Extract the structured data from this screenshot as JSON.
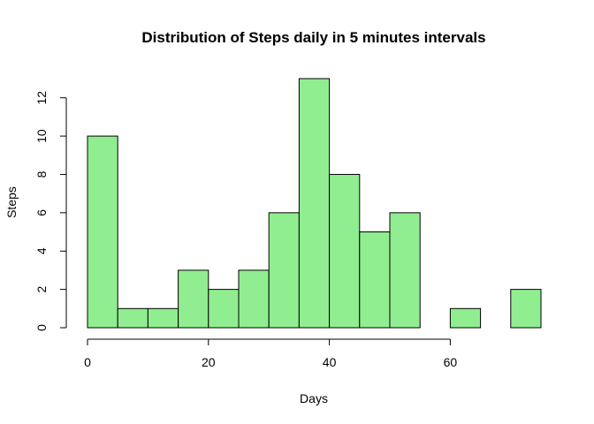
{
  "chart_data": {
    "type": "bar",
    "title": "Distribution of Steps daily in 5 minutes intervals",
    "xlabel": "Days",
    "ylabel": "Steps",
    "bin_width": 5,
    "bins": [
      {
        "start": 0,
        "end": 5,
        "value": 10
      },
      {
        "start": 5,
        "end": 10,
        "value": 1
      },
      {
        "start": 10,
        "end": 15,
        "value": 1
      },
      {
        "start": 15,
        "end": 20,
        "value": 3
      },
      {
        "start": 20,
        "end": 25,
        "value": 2
      },
      {
        "start": 25,
        "end": 30,
        "value": 3
      },
      {
        "start": 30,
        "end": 35,
        "value": 6
      },
      {
        "start": 35,
        "end": 40,
        "value": 13
      },
      {
        "start": 40,
        "end": 45,
        "value": 8
      },
      {
        "start": 45,
        "end": 50,
        "value": 5
      },
      {
        "start": 50,
        "end": 55,
        "value": 6
      },
      {
        "start": 55,
        "end": 60,
        "value": 0
      },
      {
        "start": 60,
        "end": 65,
        "value": 1
      },
      {
        "start": 65,
        "end": 70,
        "value": 0
      },
      {
        "start": 70,
        "end": 75,
        "value": 2
      }
    ],
    "xlim": [
      0,
      75
    ],
    "ylim": [
      0,
      13
    ],
    "x_ticks": [
      0,
      20,
      40,
      60
    ],
    "y_ticks": [
      0,
      2,
      4,
      6,
      8,
      10,
      12
    ],
    "grid": false,
    "colors": {
      "bar_fill": "#90EE90",
      "bar_stroke": "#000000"
    }
  }
}
